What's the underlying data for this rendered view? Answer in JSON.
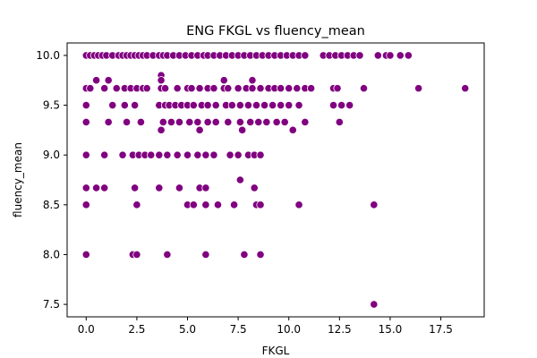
{
  "chart_data": {
    "type": "scatter",
    "title": "ENG FKGL vs fluency_mean",
    "xlabel": "FKGL",
    "ylabel": "fluency_mean",
    "xlim": [
      -0.94,
      19.64
    ],
    "ylim": [
      7.375,
      10.125
    ],
    "xticks": [
      0.0,
      2.5,
      5.0,
      7.5,
      10.0,
      12.5,
      15.0,
      17.5
    ],
    "xtick_labels": [
      "0.0",
      "2.5",
      "5.0",
      "7.5",
      "10.0",
      "12.5",
      "15.0",
      "17.5"
    ],
    "yticks": [
      7.5,
      8.0,
      8.5,
      9.0,
      9.5,
      10.0
    ],
    "ytick_labels": [
      "7.5",
      "8.0",
      "8.5",
      "9.0",
      "9.5",
      "10.0"
    ],
    "grid": false,
    "marker_color": "#800080",
    "points": [
      [
        0.0,
        10.0
      ],
      [
        0.2,
        10.0
      ],
      [
        0.4,
        10.0
      ],
      [
        0.6,
        10.0
      ],
      [
        0.8,
        10.0
      ],
      [
        1.0,
        10.0
      ],
      [
        1.3,
        10.0
      ],
      [
        1.6,
        10.0
      ],
      [
        1.8,
        10.0
      ],
      [
        2.0,
        10.0
      ],
      [
        2.2,
        10.0
      ],
      [
        2.4,
        10.0
      ],
      [
        2.6,
        10.0
      ],
      [
        2.8,
        10.0
      ],
      [
        3.0,
        10.0
      ],
      [
        3.3,
        10.0
      ],
      [
        3.6,
        10.0
      ],
      [
        3.8,
        10.0
      ],
      [
        4.0,
        10.0
      ],
      [
        4.3,
        10.0
      ],
      [
        4.6,
        10.0
      ],
      [
        4.9,
        10.0
      ],
      [
        5.2,
        10.0
      ],
      [
        5.5,
        10.0
      ],
      [
        5.8,
        10.0
      ],
      [
        6.0,
        10.0
      ],
      [
        6.3,
        10.0
      ],
      [
        6.6,
        10.0
      ],
      [
        6.9,
        10.0
      ],
      [
        7.2,
        10.0
      ],
      [
        7.5,
        10.0
      ],
      [
        7.8,
        10.0
      ],
      [
        8.1,
        10.0
      ],
      [
        8.4,
        10.0
      ],
      [
        8.7,
        10.0
      ],
      [
        9.0,
        10.0
      ],
      [
        9.3,
        10.0
      ],
      [
        9.6,
        10.0
      ],
      [
        9.9,
        10.0
      ],
      [
        10.2,
        10.0
      ],
      [
        10.5,
        10.0
      ],
      [
        10.8,
        10.0
      ],
      [
        11.7,
        10.0
      ],
      [
        12.0,
        10.0
      ],
      [
        12.3,
        10.0
      ],
      [
        12.6,
        10.0
      ],
      [
        12.9,
        10.0
      ],
      [
        13.2,
        10.0
      ],
      [
        13.5,
        10.0
      ],
      [
        14.4,
        10.0
      ],
      [
        14.8,
        10.0
      ],
      [
        15.0,
        10.0
      ],
      [
        15.5,
        10.0
      ],
      [
        15.9,
        10.0
      ],
      [
        0.0,
        9.67
      ],
      [
        0.2,
        9.67
      ],
      [
        0.9,
        9.67
      ],
      [
        1.5,
        9.67
      ],
      [
        1.9,
        9.67
      ],
      [
        2.2,
        9.67
      ],
      [
        2.5,
        9.67
      ],
      [
        2.8,
        9.67
      ],
      [
        3.0,
        9.67
      ],
      [
        3.7,
        9.67
      ],
      [
        3.9,
        9.67
      ],
      [
        4.5,
        9.67
      ],
      [
        5.0,
        9.67
      ],
      [
        5.2,
        9.67
      ],
      [
        5.6,
        9.67
      ],
      [
        6.0,
        9.67
      ],
      [
        6.3,
        9.67
      ],
      [
        6.8,
        9.67
      ],
      [
        7.0,
        9.67
      ],
      [
        7.5,
        9.67
      ],
      [
        7.9,
        9.67
      ],
      [
        8.2,
        9.67
      ],
      [
        8.6,
        9.67
      ],
      [
        9.0,
        9.67
      ],
      [
        9.3,
        9.67
      ],
      [
        9.6,
        9.67
      ],
      [
        10.0,
        9.67
      ],
      [
        10.4,
        9.67
      ],
      [
        10.8,
        9.67
      ],
      [
        11.1,
        9.67
      ],
      [
        12.2,
        9.67
      ],
      [
        12.4,
        9.67
      ],
      [
        13.7,
        9.67
      ],
      [
        16.4,
        9.67
      ],
      [
        18.7,
        9.67
      ],
      [
        0.5,
        9.75
      ],
      [
        1.1,
        9.75
      ],
      [
        3.7,
        9.8
      ],
      [
        3.7,
        9.75
      ],
      [
        6.8,
        9.75
      ],
      [
        8.2,
        9.75
      ],
      [
        0.0,
        9.5
      ],
      [
        1.3,
        9.5
      ],
      [
        1.9,
        9.5
      ],
      [
        2.4,
        9.5
      ],
      [
        3.6,
        9.5
      ],
      [
        3.9,
        9.5
      ],
      [
        4.1,
        9.5
      ],
      [
        4.4,
        9.5
      ],
      [
        4.7,
        9.5
      ],
      [
        5.0,
        9.5
      ],
      [
        5.3,
        9.5
      ],
      [
        5.7,
        9.5
      ],
      [
        6.0,
        9.5
      ],
      [
        6.4,
        9.5
      ],
      [
        6.9,
        9.5
      ],
      [
        7.2,
        9.5
      ],
      [
        7.6,
        9.5
      ],
      [
        8.0,
        9.5
      ],
      [
        8.4,
        9.5
      ],
      [
        8.8,
        9.5
      ],
      [
        9.2,
        9.5
      ],
      [
        9.6,
        9.5
      ],
      [
        10.0,
        9.5
      ],
      [
        10.5,
        9.5
      ],
      [
        12.2,
        9.5
      ],
      [
        12.6,
        9.5
      ],
      [
        13.0,
        9.5
      ],
      [
        0.0,
        9.33
      ],
      [
        1.1,
        9.33
      ],
      [
        2.0,
        9.33
      ],
      [
        2.7,
        9.33
      ],
      [
        3.8,
        9.33
      ],
      [
        4.2,
        9.33
      ],
      [
        4.6,
        9.33
      ],
      [
        5.1,
        9.33
      ],
      [
        5.5,
        9.33
      ],
      [
        6.0,
        9.33
      ],
      [
        6.4,
        9.33
      ],
      [
        7.0,
        9.33
      ],
      [
        7.6,
        9.33
      ],
      [
        8.1,
        9.33
      ],
      [
        8.5,
        9.33
      ],
      [
        8.9,
        9.33
      ],
      [
        9.4,
        9.33
      ],
      [
        9.8,
        9.33
      ],
      [
        10.8,
        9.33
      ],
      [
        12.5,
        9.33
      ],
      [
        3.7,
        9.25
      ],
      [
        5.6,
        9.25
      ],
      [
        7.7,
        9.25
      ],
      [
        10.2,
        9.25
      ],
      [
        0.0,
        9.0
      ],
      [
        0.9,
        9.0
      ],
      [
        1.8,
        9.0
      ],
      [
        2.3,
        9.0
      ],
      [
        2.6,
        9.0
      ],
      [
        2.9,
        9.0
      ],
      [
        3.2,
        9.0
      ],
      [
        3.6,
        9.0
      ],
      [
        4.0,
        9.0
      ],
      [
        4.5,
        9.0
      ],
      [
        5.0,
        9.0
      ],
      [
        5.5,
        9.0
      ],
      [
        5.9,
        9.0
      ],
      [
        6.3,
        9.0
      ],
      [
        7.1,
        9.0
      ],
      [
        7.5,
        9.0
      ],
      [
        8.0,
        9.0
      ],
      [
        8.3,
        9.0
      ],
      [
        8.6,
        9.0
      ],
      [
        7.6,
        8.75
      ],
      [
        0.0,
        8.67
      ],
      [
        0.5,
        8.67
      ],
      [
        0.9,
        8.67
      ],
      [
        2.4,
        8.67
      ],
      [
        3.6,
        8.67
      ],
      [
        4.6,
        8.67
      ],
      [
        5.6,
        8.67
      ],
      [
        5.9,
        8.67
      ],
      [
        8.3,
        8.67
      ],
      [
        0.0,
        8.5
      ],
      [
        2.5,
        8.5
      ],
      [
        5.0,
        8.5
      ],
      [
        5.3,
        8.5
      ],
      [
        5.9,
        8.5
      ],
      [
        6.5,
        8.5
      ],
      [
        7.3,
        8.5
      ],
      [
        8.4,
        8.5
      ],
      [
        8.6,
        8.5
      ],
      [
        10.5,
        8.5
      ],
      [
        14.2,
        8.5
      ],
      [
        0.0,
        8.0
      ],
      [
        2.3,
        8.0
      ],
      [
        2.5,
        8.0
      ],
      [
        4.0,
        8.0
      ],
      [
        5.9,
        8.0
      ],
      [
        7.8,
        8.0
      ],
      [
        8.6,
        8.0
      ],
      [
        14.2,
        7.5
      ]
    ]
  }
}
